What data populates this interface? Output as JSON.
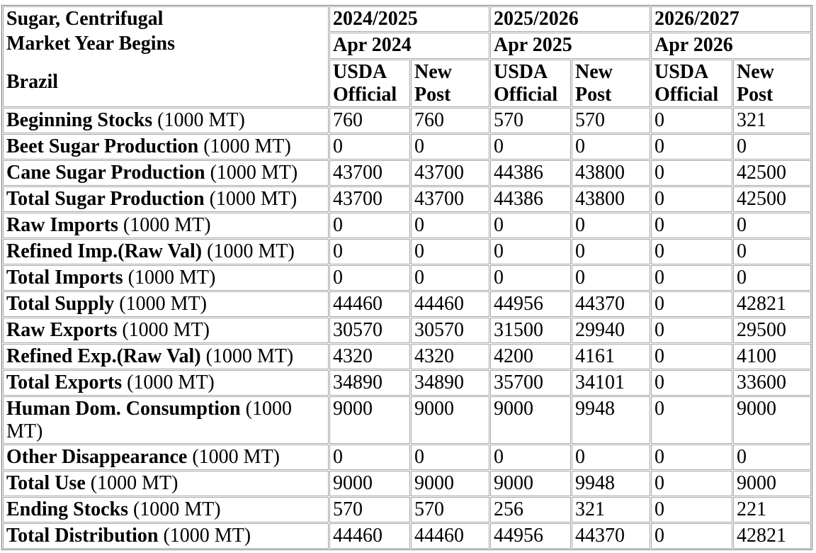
{
  "table": {
    "commodity": "Sugar, Centrifugal",
    "market_year_label": "Market Year Begins",
    "country": "Brazil",
    "year_groups": [
      {
        "year": "2024/2025",
        "market_year_begins": "Apr 2024"
      },
      {
        "year": "2025/2026",
        "market_year_begins": "Apr 2025"
      },
      {
        "year": "2026/2027",
        "market_year_begins": "Apr 2026"
      }
    ],
    "sub_columns": [
      "USDA Official",
      "New Post"
    ],
    "rows": [
      {
        "label": "Beginning Stocks",
        "unit": "(1000 MT)",
        "values": [
          "760",
          "760",
          "570",
          "570",
          "0",
          "321"
        ]
      },
      {
        "label": "Beet Sugar Production",
        "unit": "(1000 MT)",
        "values": [
          "0",
          "0",
          "0",
          "0",
          "0",
          "0"
        ]
      },
      {
        "label": "Cane Sugar Production",
        "unit": "(1000 MT)",
        "values": [
          "43700",
          "43700",
          "44386",
          "43800",
          "0",
          "42500"
        ]
      },
      {
        "label": "Total Sugar Production",
        "unit": "(1000 MT)",
        "values": [
          "43700",
          "43700",
          "44386",
          "43800",
          "0",
          "42500"
        ]
      },
      {
        "label": "Raw Imports",
        "unit": "(1000 MT)",
        "values": [
          "0",
          "0",
          "0",
          "0",
          "0",
          "0"
        ]
      },
      {
        "label": "Refined Imp.(Raw Val)",
        "unit": "(1000 MT)",
        "values": [
          "0",
          "0",
          "0",
          "0",
          "0",
          "0"
        ]
      },
      {
        "label": "Total Imports",
        "unit": "(1000 MT)",
        "values": [
          "0",
          "0",
          "0",
          "0",
          "0",
          "0"
        ]
      },
      {
        "label": "Total Supply",
        "unit": "(1000 MT)",
        "values": [
          "44460",
          "44460",
          "44956",
          "44370",
          "0",
          "42821"
        ]
      },
      {
        "label": "Raw Exports",
        "unit": "(1000 MT)",
        "values": [
          "30570",
          "30570",
          "31500",
          "29940",
          "0",
          "29500"
        ]
      },
      {
        "label": "Refined Exp.(Raw Val)",
        "unit": "(1000 MT)",
        "values": [
          "4320",
          "4320",
          "4200",
          "4161",
          "0",
          "4100"
        ]
      },
      {
        "label": "Total Exports",
        "unit": "(1000 MT)",
        "values": [
          "34890",
          "34890",
          "35700",
          "34101",
          "0",
          "33600"
        ]
      },
      {
        "label": "Human Dom. Consumption",
        "unit": "(1000 MT)",
        "values": [
          "9000",
          "9000",
          "9000",
          "9948",
          "0",
          "9000"
        ]
      },
      {
        "label": "Other Disappearance",
        "unit": "(1000 MT)",
        "values": [
          "0",
          "0",
          "0",
          "0",
          "0",
          "0"
        ]
      },
      {
        "label": "Total Use",
        "unit": "(1000 MT)",
        "values": [
          "9000",
          "9000",
          "9000",
          "9948",
          "0",
          "9000"
        ]
      },
      {
        "label": "Ending Stocks",
        "unit": "(1000 MT)",
        "values": [
          "570",
          "570",
          "256",
          "321",
          "0",
          "221"
        ]
      },
      {
        "label": "Total Distribution",
        "unit": "(1000 MT)",
        "values": [
          "44460",
          "44460",
          "44956",
          "44370",
          "0",
          "42821"
        ]
      }
    ],
    "colors": {
      "background": "#ffffff",
      "text": "#000000",
      "border_outer": "#767676",
      "border_cell": "#a6a6a6"
    }
  }
}
